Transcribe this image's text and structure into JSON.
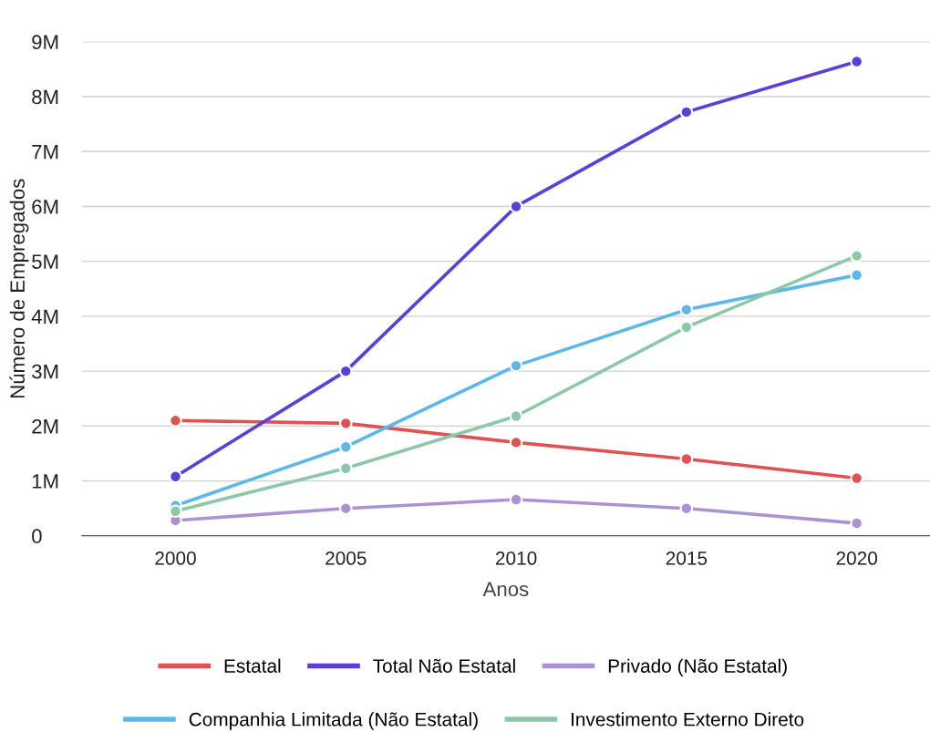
{
  "chart_data": {
    "type": "line",
    "xlabel": "Anos",
    "ylabel": "Número de Empregados",
    "categories": [
      "2000",
      "2005",
      "2010",
      "2015",
      "2020"
    ],
    "series": [
      {
        "name": "Estatal",
        "color": "#e05252",
        "values": [
          2.1,
          2.05,
          1.7,
          1.4,
          1.05
        ]
      },
      {
        "name": "Total Não Estatal",
        "color": "#5c3fd8",
        "values": [
          1.08,
          3.0,
          6.0,
          7.72,
          8.64
        ]
      },
      {
        "name": "Privado (Não Estatal)",
        "color": "#ab92d3",
        "values": [
          0.28,
          0.5,
          0.66,
          0.5,
          0.23
        ]
      },
      {
        "name": "Companhia Limitada (Não Estatal)",
        "color": "#5db7ea",
        "values": [
          0.55,
          1.62,
          3.1,
          4.12,
          4.75
        ]
      },
      {
        "name": "Investimento Externo Direto",
        "color": "#8cc7a6",
        "values": [
          0.45,
          1.23,
          2.18,
          3.8,
          5.1
        ]
      }
    ],
    "ylim": [
      0,
      9
    ],
    "yticks": [
      {
        "value": 0,
        "label": "0"
      },
      {
        "value": 1,
        "label": "1M"
      },
      {
        "value": 2,
        "label": "2M"
      },
      {
        "value": 3,
        "label": "3M"
      },
      {
        "value": 4,
        "label": "4M"
      },
      {
        "value": 5,
        "label": "5M"
      },
      {
        "value": 6,
        "label": "6M"
      },
      {
        "value": 7,
        "label": "7M"
      },
      {
        "value": 8,
        "label": "8M"
      },
      {
        "value": 9,
        "label": "9M"
      }
    ],
    "grid": "y",
    "legend": "bottom",
    "marker": "circle",
    "line_style": "solid"
  }
}
